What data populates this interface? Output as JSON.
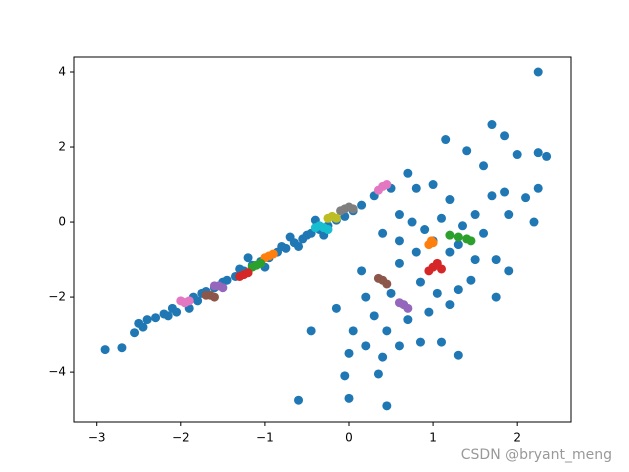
{
  "chart_data": {
    "type": "scatter",
    "xlim": [
      -3.27,
      2.64
    ],
    "ylim": [
      -5.33,
      4.4
    ],
    "xticks": [
      {
        "value": -3,
        "label": "−3"
      },
      {
        "value": -2,
        "label": "−2"
      },
      {
        "value": -1,
        "label": "−1"
      },
      0,
      1,
      2
    ],
    "yticks": [
      {
        "value": -4,
        "label": "−4"
      },
      {
        "value": -2,
        "label": "−2"
      },
      0,
      2,
      4
    ],
    "series": [
      {
        "color": "#1f77b4",
        "x": [
          -2.9,
          -2.7,
          -2.5,
          -2.45,
          -2.4,
          -2.3,
          -2.2,
          -2.1,
          -2.05,
          -1.95,
          -1.85,
          -1.8,
          -1.7,
          -1.6,
          -1.5,
          -1.45,
          -1.35,
          -1.25,
          -1.15,
          -1.05,
          -0.95,
          -0.85,
          -0.75,
          -0.65,
          -0.55,
          -0.5,
          -0.45,
          -0.35,
          -0.25,
          -0.15,
          -0.05,
          0.05,
          0.15,
          0.3,
          -0.6,
          -0.8,
          -1.0,
          -1.3,
          -1.75,
          -2.15,
          -0.7,
          -0.3,
          -0.4,
          -1.2,
          -1.9,
          -2.55,
          2.25,
          1.7,
          1.15,
          1.4,
          1.85,
          2.0,
          2.25,
          1.6,
          2.35,
          1.85,
          2.1,
          2.25,
          0.7,
          1.0,
          0.5,
          0.8,
          1.2,
          1.5,
          1.7,
          0.6,
          0.75,
          0.9,
          1.1,
          1.35,
          1.6,
          1.9,
          2.2,
          0.6,
          0.8,
          1.2,
          1.5,
          1.75,
          1.9,
          1.75,
          0.4,
          0.15,
          0.2,
          0.3,
          0.45,
          0.7,
          0.95,
          1.2,
          1.3,
          1.45,
          1.1,
          1.3,
          0.85,
          0.6,
          0.4,
          0.2,
          0.0,
          0.05,
          -0.15,
          -0.45,
          -0.05,
          0.35,
          -0.6,
          0.0,
          0.45,
          0.85,
          1.05,
          0.6,
          1.0,
          1.3,
          0.5
        ],
        "values": [
          -3.4,
          -3.35,
          -2.7,
          -2.8,
          -2.6,
          -2.55,
          -2.45,
          -2.3,
          -2.4,
          -2.15,
          -2.0,
          -2.1,
          -1.85,
          -1.75,
          -1.6,
          -1.55,
          -1.45,
          -1.3,
          -1.15,
          -1.05,
          -0.95,
          -0.8,
          -0.7,
          -0.55,
          -0.45,
          -0.35,
          -0.3,
          -0.2,
          -0.1,
          0.05,
          0.15,
          0.3,
          0.45,
          0.7,
          -0.65,
          -0.65,
          -1.2,
          -1.25,
          -1.9,
          -2.5,
          -0.4,
          -0.35,
          0.05,
          -0.95,
          -2.3,
          -2.95,
          4.0,
          2.6,
          2.2,
          1.9,
          2.3,
          1.8,
          1.85,
          1.5,
          1.75,
          0.8,
          0.65,
          0.9,
          1.3,
          1.0,
          0.9,
          0.9,
          0.6,
          0.2,
          0.7,
          0.2,
          0.0,
          -0.2,
          0.1,
          -0.1,
          -0.3,
          0.2,
          0.0,
          -0.5,
          -0.8,
          -0.8,
          -1.0,
          -1.0,
          -1.3,
          -2.0,
          -0.3,
          -1.3,
          -2.0,
          -2.5,
          -2.9,
          -2.6,
          -2.4,
          -2.2,
          -1.8,
          -1.55,
          -3.2,
          -3.55,
          -3.2,
          -3.3,
          -3.6,
          -3.3,
          -3.5,
          -2.9,
          -2.3,
          -2.9,
          -4.1,
          -4.05,
          -4.75,
          -4.7,
          -4.9,
          -1.6,
          -1.9,
          -1.1,
          -0.5,
          -0.6,
          -1.9
        ]
      },
      {
        "color": "#ff7f0e",
        "x": [
          -1.0,
          -0.95,
          -0.9,
          0.95,
          0.98,
          1.0
        ],
        "values": [
          -0.95,
          -0.9,
          -0.85,
          -0.6,
          -0.5,
          -0.55
        ]
      },
      {
        "color": "#2ca02c",
        "x": [
          -1.15,
          -1.1,
          -1.05,
          1.2,
          1.3,
          1.4,
          1.45
        ],
        "values": [
          -1.2,
          -1.15,
          -1.1,
          -0.35,
          -0.4,
          -0.45,
          -0.5
        ]
      },
      {
        "color": "#d62728",
        "x": [
          -1.3,
          -1.25,
          -1.2,
          1.0,
          1.05,
          1.1,
          0.95
        ],
        "values": [
          -1.45,
          -1.4,
          -1.35,
          -1.2,
          -1.1,
          -1.25,
          -1.3
        ]
      },
      {
        "color": "#9467bd",
        "x": [
          -1.6,
          -1.55,
          -1.5,
          0.6,
          0.65,
          0.7
        ],
        "values": [
          -1.7,
          -1.7,
          -1.75,
          -2.15,
          -2.2,
          -2.3
        ]
      },
      {
        "color": "#8c564b",
        "x": [
          -1.7,
          -1.65,
          -1.6,
          0.35,
          0.4,
          0.45
        ],
        "values": [
          -1.95,
          -1.95,
          -2.0,
          -1.5,
          -1.55,
          -1.65
        ]
      },
      {
        "color": "#e377c2",
        "x": [
          -2.0,
          -1.95,
          -1.9,
          0.35,
          0.4,
          0.45
        ],
        "values": [
          -2.1,
          -2.15,
          -2.1,
          0.85,
          0.95,
          1.0
        ]
      },
      {
        "color": "#7f7f7f",
        "x": [
          -0.1,
          -0.05,
          0.0,
          0.05
        ],
        "values": [
          0.3,
          0.35,
          0.4,
          0.35
        ]
      },
      {
        "color": "#bcbd22",
        "x": [
          -0.25,
          -0.2,
          -0.15
        ],
        "values": [
          0.1,
          0.15,
          0.1
        ]
      },
      {
        "color": "#17becf",
        "x": [
          -0.4,
          -0.35,
          -0.3,
          -0.25
        ],
        "values": [
          -0.15,
          -0.1,
          -0.15,
          -0.2
        ]
      }
    ]
  },
  "watermark": "CSDN @bryant_meng"
}
